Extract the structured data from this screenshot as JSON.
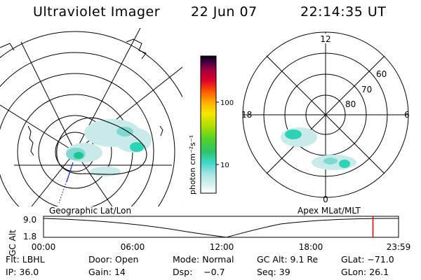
{
  "header": {
    "instrument": "Ultraviolet Imager",
    "date": "22 Jun 07",
    "time": "22:14:35 UT"
  },
  "colorbar": {
    "unit": "photon cm⁻²s⁻¹",
    "ticks": [
      "100",
      "10"
    ]
  },
  "polar_plot": {
    "mlt_labels": {
      "top": "12",
      "left": "18",
      "right": "6",
      "bottom": "0"
    },
    "mlat_labels": [
      "60",
      "70",
      "80"
    ]
  },
  "map_labels": {
    "left": "Geographic Lat/Lon",
    "right": "Apex MLat/MLT"
  },
  "timeline": {
    "axis_label": "GC Alt",
    "y_ticks": [
      "9.0",
      "1.8"
    ],
    "x_ticks": [
      "00:00",
      "06:00",
      "12:00",
      "18:00",
      "23:59"
    ],
    "current_time_fraction": 0.928
  },
  "info": {
    "row1": [
      {
        "label": "Flt:",
        "value": "LBHL"
      },
      {
        "label": "Door:",
        "value": "Open"
      },
      {
        "label": "Mode:",
        "value": "Normal"
      },
      {
        "label": "GC Alt:",
        "value": "9.1 Re"
      },
      {
        "label": "GLat:",
        "value": "−71.0"
      }
    ],
    "row2": [
      {
        "label": "IP:",
        "value": "36.0"
      },
      {
        "label": "Gain:",
        "value": "14"
      },
      {
        "label": "Dsp:",
        "value": "   −0.7"
      },
      {
        "label": "Seq:",
        "value": "39"
      },
      {
        "label": "GLon:",
        "value": "26.1"
      }
    ]
  },
  "colors": {
    "aurora_light": "#c8ebea",
    "aurora_mid": "#7fd9d2",
    "aurora_bright": "#2cd3b4",
    "aurora_peak": "#18c890",
    "timeline_marker": "#e00000"
  }
}
